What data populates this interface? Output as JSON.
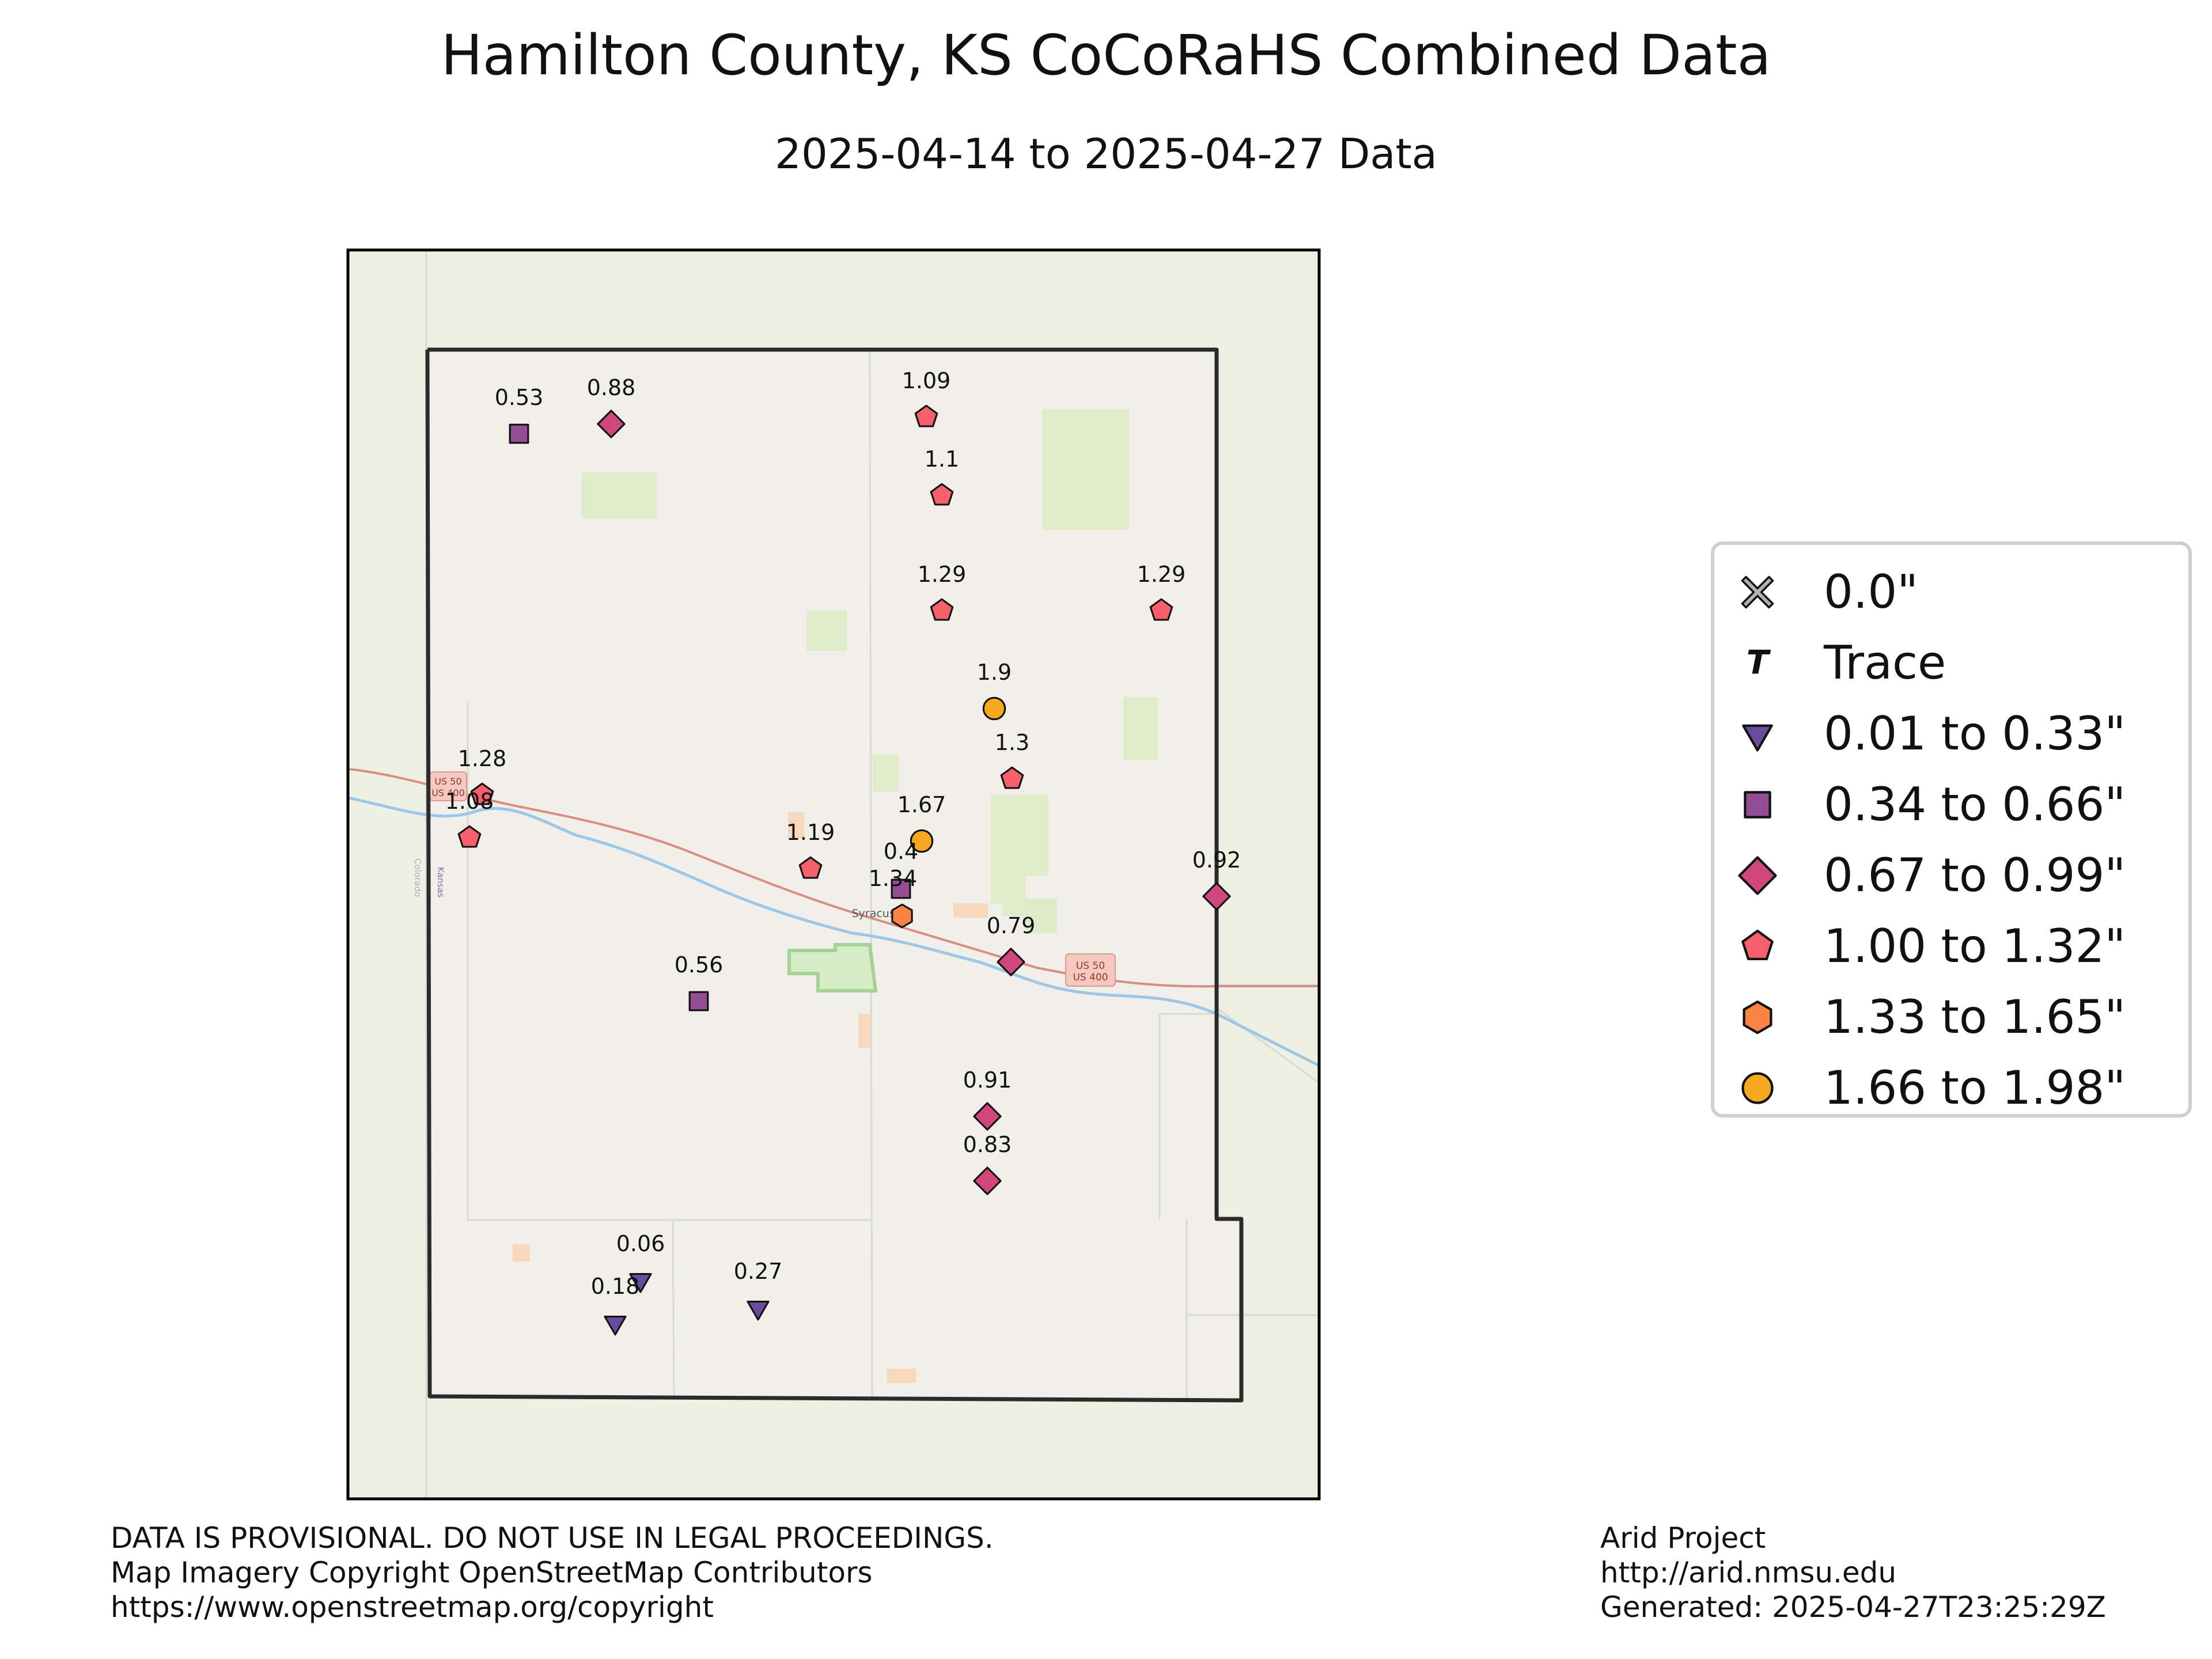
{
  "title": "Hamilton County, KS CoCoRaHS Combined Data",
  "subtitle": "2025-04-14 to 2025-04-27 Data",
  "map_labels": {
    "town": "Syracuse",
    "state_left": "Kansas",
    "state_right": "Colorado",
    "highway_west": [
      "US 50",
      "US 400"
    ],
    "highway_east": [
      "US 50",
      "US 400"
    ]
  },
  "legend": [
    {
      "label": "0.0\"",
      "marker": "x",
      "color": "#b0b0b0"
    },
    {
      "label": "Trace",
      "marker": "T",
      "color": "#111111"
    },
    {
      "label": "0.01 to 0.33\"",
      "marker": "triangle",
      "color": "#6a4c9c"
    },
    {
      "label": "0.34 to 0.66\"",
      "marker": "square",
      "color": "#944c94"
    },
    {
      "label": "0.67 to 0.99\"",
      "marker": "diamond",
      "color": "#d1477d"
    },
    {
      "label": "1.00 to 1.32\"",
      "marker": "pentagon",
      "color": "#f5606a"
    },
    {
      "label": "1.33 to 1.65\"",
      "marker": "hexagon",
      "color": "#fb8445"
    },
    {
      "label": "1.66 to 1.98\"",
      "marker": "circle",
      "color": "#f8a81e"
    }
  ],
  "stations": [
    {
      "value": "0.53",
      "marker": "square",
      "color": "#944c94"
    },
    {
      "value": "0.88",
      "marker": "diamond",
      "color": "#d1477d"
    },
    {
      "value": "1.09",
      "marker": "pentagon",
      "color": "#f5606a"
    },
    {
      "value": "1.1",
      "marker": "pentagon",
      "color": "#f5606a"
    },
    {
      "value": "1.29",
      "marker": "pentagon",
      "color": "#f5606a"
    },
    {
      "value": "1.29",
      "marker": "pentagon",
      "color": "#f5606a"
    },
    {
      "value": "1.9",
      "marker": "circle",
      "color": "#f8a81e"
    },
    {
      "value": "1.3",
      "marker": "pentagon",
      "color": "#f5606a"
    },
    {
      "value": "1.28",
      "marker": "pentagon",
      "color": "#f5606a"
    },
    {
      "value": "1.08",
      "marker": "pentagon",
      "color": "#f5606a"
    },
    {
      "value": "1.19",
      "marker": "pentagon",
      "color": "#f5606a"
    },
    {
      "value": "1.67",
      "marker": "circle",
      "color": "#f8a81e"
    },
    {
      "value": "0.4",
      "marker": "square",
      "color": "#944c94"
    },
    {
      "value": "1.34",
      "marker": "hexagon",
      "color": "#fb8445"
    },
    {
      "value": "0.92",
      "marker": "diamond",
      "color": "#d1477d"
    },
    {
      "value": "0.79",
      "marker": "diamond",
      "color": "#d1477d"
    },
    {
      "value": "0.56",
      "marker": "square",
      "color": "#944c94"
    },
    {
      "value": "0.91",
      "marker": "diamond",
      "color": "#d1477d"
    },
    {
      "value": "0.83",
      "marker": "diamond",
      "color": "#d1477d"
    },
    {
      "value": "0.06",
      "marker": "triangle",
      "color": "#6a4c9c"
    },
    {
      "value": "0.18",
      "marker": "triangle",
      "color": "#6a4c9c"
    },
    {
      "value": "0.27",
      "marker": "triangle",
      "color": "#6a4c9c"
    }
  ],
  "footer_left": [
    "DATA IS PROVISIONAL. DO NOT USE IN LEGAL PROCEEDINGS.",
    "Map Imagery Copyright OpenStreetMap Contributors",
    "https://www.openstreetmap.org/copyright"
  ],
  "footer_right": [
    "Arid Project",
    "http://arid.nmsu.edu",
    "Generated: 2025-04-27T23:25:29Z"
  ]
}
